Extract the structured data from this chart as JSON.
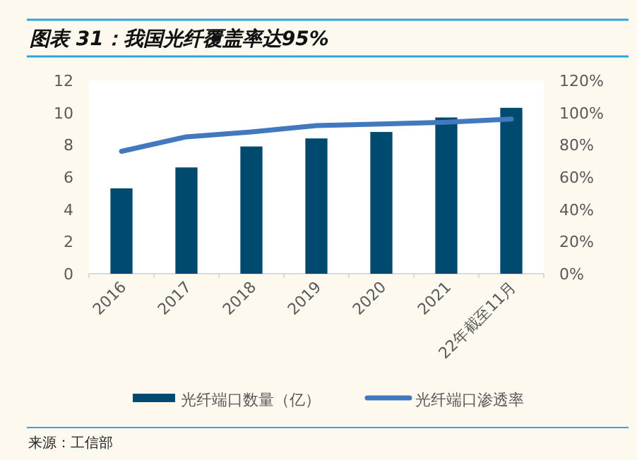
{
  "chart_data": {
    "type": "bar",
    "title": "图表 31：我国光纤覆盖率达95%",
    "categories": [
      "2016",
      "2017",
      "2018",
      "2019",
      "2020",
      "2021",
      "22年截至11月"
    ],
    "series": [
      {
        "name": "光纤端口数量（亿）",
        "color": "#004a70",
        "values": [
          5.3,
          6.6,
          7.9,
          8.4,
          8.8,
          9.7,
          10.3
        ]
      },
      {
        "name": "光纤端口渗透率",
        "type": "line",
        "axis": "y2",
        "color": "#4178be",
        "values": [
          76,
          85,
          88,
          92,
          93,
          94,
          96
        ]
      }
    ],
    "ylim": [
      0,
      12
    ],
    "yticks": [
      0,
      2,
      4,
      6,
      8,
      10,
      12
    ],
    "y2lim": [
      0,
      120
    ],
    "y2ticks": [
      {
        "value": 0,
        "label": "0%"
      },
      {
        "value": 20,
        "label": "20%"
      },
      {
        "value": 40,
        "label": "40%"
      },
      {
        "value": 60,
        "label": "60%"
      },
      {
        "value": 80,
        "label": "80%"
      },
      {
        "value": 100,
        "label": "100%"
      },
      {
        "value": 120,
        "label": "120%"
      }
    ],
    "legend": "bottom",
    "grid": false,
    "marker": "none",
    "line_style": "solid",
    "annotations": [
      "来源：工信部"
    ]
  }
}
